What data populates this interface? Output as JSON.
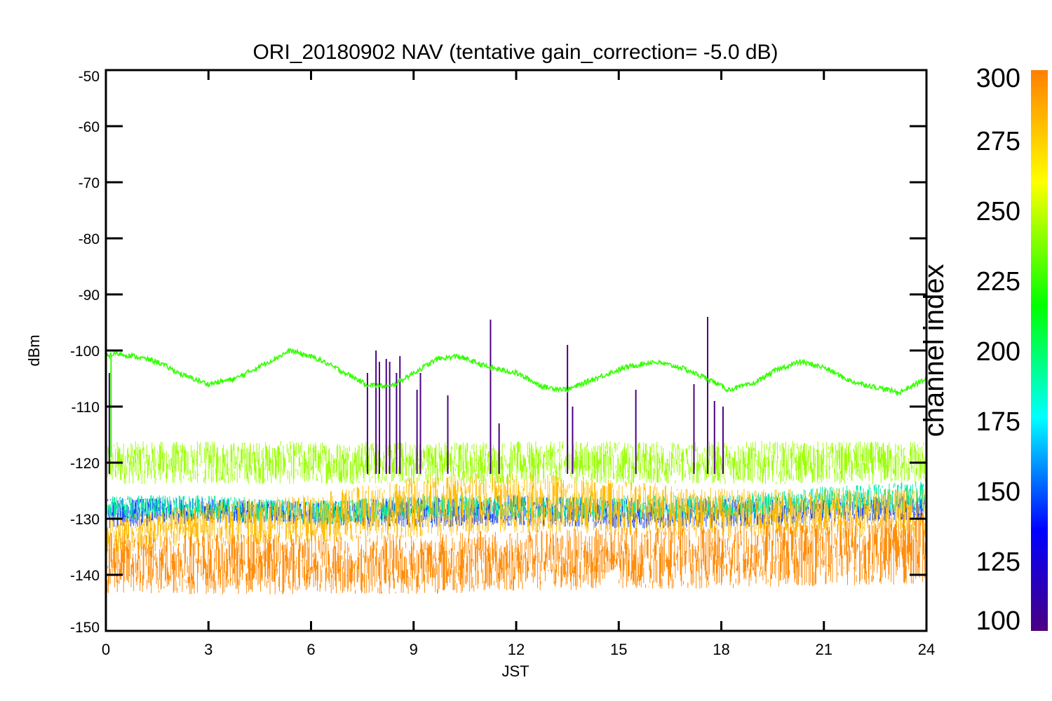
{
  "chart_data": {
    "type": "line",
    "title": "ORI_20180902 NAV (tentative gain_correction= -5.0 dB)",
    "xlabel": "JST",
    "ylabel": "dBm",
    "xlim": [
      0,
      24
    ],
    "ylim": [
      -150,
      -50
    ],
    "xticks": [
      0,
      3,
      6,
      9,
      12,
      15,
      18,
      21,
      24
    ],
    "yticks": [
      -50,
      -60,
      -70,
      -80,
      -90,
      -100,
      -110,
      -120,
      -130,
      -140,
      -150
    ],
    "grid": false,
    "colorbar": {
      "label": "channel index",
      "range": [
        100,
        300
      ],
      "ticks": [
        100,
        125,
        150,
        175,
        200,
        225,
        250,
        275,
        300
      ],
      "colors": [
        "#4b0082",
        "#0000ff",
        "#00ffff",
        "#00ff00",
        "#ffff00",
        "#ff8000"
      ]
    },
    "series": [
      {
        "channel_index": 230,
        "color": "#33ff00",
        "x": [
          0,
          0.3,
          0.8,
          1.5,
          2.3,
          3.0,
          3.8,
          4.6,
          5.4,
          6.2,
          7.0,
          7.6,
          8.3,
          9.0,
          9.7,
          10.3,
          11.2,
          12.0,
          12.8,
          13.5,
          14.3,
          15.2,
          16.0,
          16.8,
          17.6,
          18.2,
          18.9,
          19.6,
          20.3,
          21.0,
          21.8,
          22.5,
          23.2,
          24.0
        ],
        "y": [
          -101,
          -100.5,
          -101,
          -102,
          -104.5,
          -106,
          -105,
          -102.5,
          -100,
          -101.5,
          -104,
          -106,
          -106.5,
          -104,
          -101.5,
          -101,
          -103,
          -104,
          -106.5,
          -107,
          -105,
          -103,
          -102,
          -103,
          -105,
          -107,
          -106,
          -103.5,
          -102,
          -103,
          -105.5,
          -106.5,
          -107.5,
          -105
        ]
      },
      {
        "channel_index": 255,
        "color": "#99ff00",
        "band_center": [
          -120,
          -120,
          -120,
          -120,
          -120,
          -120,
          -120,
          -120,
          -120
        ],
        "band_halfwidth": [
          3.5,
          3.5,
          3.5,
          3.5,
          3.5,
          3.5,
          3.5,
          3.5,
          3.5
        ]
      },
      {
        "channel_index": 295,
        "color": "#ff8800",
        "band_center": [
          -138,
          -138,
          -138,
          -138,
          -137.5,
          -137,
          -137,
          -136,
          -135
        ],
        "band_halfwidth": [
          5,
          5,
          5,
          5,
          5,
          5,
          5,
          5.5,
          6
        ]
      },
      {
        "channel_index": 280,
        "color": "#ffbb00",
        "band_center": [
          -133,
          -131,
          -130,
          -128,
          -127,
          -128,
          -129,
          -129,
          -129
        ],
        "band_halfwidth": [
          3,
          3.5,
          4,
          5,
          5,
          4.5,
          4,
          4,
          4
        ]
      },
      {
        "channel_index": 190,
        "color": "#00e8a0",
        "band_center": [
          -128,
          -128,
          -129,
          -128,
          -128,
          -128,
          -128,
          -127,
          -126
        ],
        "band_halfwidth": [
          2,
          2,
          2,
          2,
          2,
          2,
          2,
          2.5,
          2.5
        ]
      },
      {
        "channel_index": 140,
        "color": "#1040ff",
        "band_center": [
          -129,
          -128.5,
          -129,
          -129,
          -128.5,
          -129,
          -129,
          -128.5,
          -128
        ],
        "band_halfwidth": [
          2.5,
          2,
          2,
          2.5,
          2.5,
          2.5,
          2.5,
          2,
          2
        ]
      },
      {
        "channel_index": 105,
        "color": "#4b0082",
        "spikes": [
          {
            "x": 0.1,
            "y": -104
          },
          {
            "x": 7.65,
            "y": -104
          },
          {
            "x": 7.9,
            "y": -100
          },
          {
            "x": 8.0,
            "y": -102
          },
          {
            "x": 8.2,
            "y": -101.5
          },
          {
            "x": 8.3,
            "y": -102
          },
          {
            "x": 8.5,
            "y": -104
          },
          {
            "x": 8.6,
            "y": -101
          },
          {
            "x": 9.1,
            "y": -107
          },
          {
            "x": 9.2,
            "y": -104
          },
          {
            "x": 10.0,
            "y": -108
          },
          {
            "x": 11.25,
            "y": -94.5
          },
          {
            "x": 11.5,
            "y": -113
          },
          {
            "x": 13.5,
            "y": -99
          },
          {
            "x": 13.65,
            "y": -110
          },
          {
            "x": 15.5,
            "y": -107
          },
          {
            "x": 17.2,
            "y": -106
          },
          {
            "x": 17.6,
            "y": -94
          },
          {
            "x": 17.8,
            "y": -109
          },
          {
            "x": 18.05,
            "y": -110
          }
        ],
        "base": -122
      }
    ]
  }
}
